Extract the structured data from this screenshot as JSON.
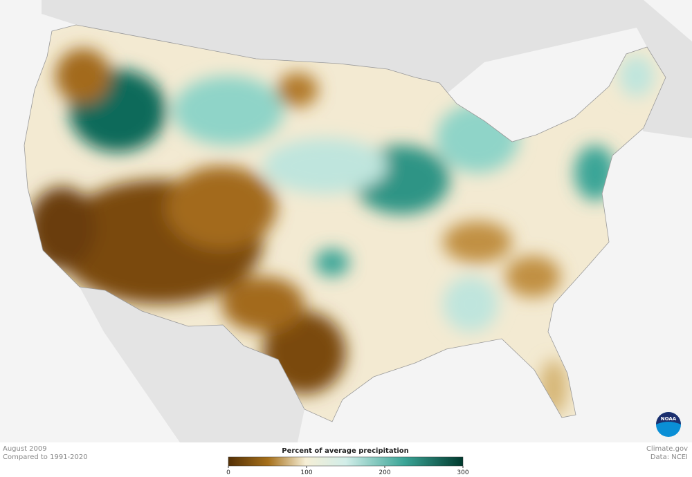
{
  "footer": {
    "date": "August 2009",
    "baseline": "Compared to 1991-2020",
    "source": "Climate.gov",
    "credit": "Data: NCEI"
  },
  "legend": {
    "title": "Percent of average precipitation",
    "ticks": [
      0,
      100,
      200,
      300
    ]
  },
  "logo": "NOAA"
}
